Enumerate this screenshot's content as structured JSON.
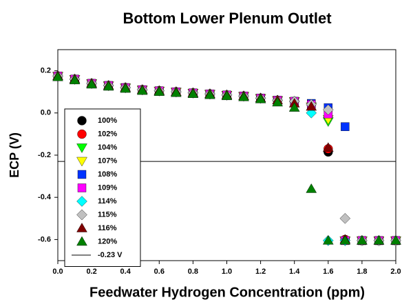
{
  "chart_data": {
    "type": "scatter",
    "title": "Bottom Lower Plenum Outlet",
    "x_label": "Feedwater Hydrogen Concentration (ppm)",
    "y_label": "ECP (V)",
    "x": [
      0,
      0.1,
      0.2,
      0.3,
      0.4,
      0.5,
      0.6,
      0.7,
      0.8,
      0.9,
      1.0,
      1.1,
      1.2,
      1.3,
      1.4,
      1.5,
      1.6,
      1.7,
      1.8,
      1.9,
      2.0
    ],
    "xlim": [
      0,
      2.0
    ],
    "xticks": [
      {
        "value": 0,
        "label": "0.0"
      },
      0.2,
      0.4,
      0.6,
      0.8,
      {
        "value": 1,
        "label": "1.0"
      },
      1.2,
      1.4,
      1.6,
      1.8,
      {
        "value": 2,
        "label": "2.0"
      }
    ],
    "ylim": [
      -0.7,
      0.3
    ],
    "yticks": [
      0.2,
      {
        "value": 0,
        "label": "0.0"
      },
      -0.2,
      -0.4,
      -0.6
    ],
    "legend": "lower-left",
    "series": [
      {
        "name": "100%",
        "color": "#000000",
        "marker": "circle",
        "values": [
          0.175,
          0.16,
          0.14,
          0.13,
          0.12,
          0.11,
          0.105,
          0.1,
          0.095,
          0.09,
          0.085,
          0.08,
          0.07,
          0.06,
          0.055,
          0.04,
          -0.185,
          -0.6,
          -0.605,
          -0.605,
          -0.605
        ]
      },
      {
        "name": "102%",
        "color": "#ff0000",
        "marker": "circle",
        "values": [
          0.175,
          0.16,
          0.14,
          0.13,
          0.12,
          0.11,
          0.105,
          0.1,
          0.095,
          0.09,
          0.085,
          0.08,
          0.07,
          0.06,
          0.055,
          0.04,
          -0.17,
          -0.6,
          -0.605,
          -0.605,
          -0.605
        ]
      },
      {
        "name": "104%",
        "color": "#00ff00",
        "marker": "triangle-down",
        "values": [
          0.175,
          0.16,
          0.14,
          0.13,
          0.12,
          0.11,
          0.105,
          0.1,
          0.095,
          0.09,
          0.085,
          0.08,
          0.07,
          0.06,
          0.055,
          0.03,
          -0.04,
          -0.605,
          -0.605,
          -0.605,
          -0.605
        ]
      },
      {
        "name": "107%",
        "color": "#ffff00",
        "marker": "triangle-down",
        "values": [
          0.175,
          0.16,
          0.14,
          0.13,
          0.12,
          0.11,
          0.105,
          0.1,
          0.095,
          0.09,
          0.085,
          0.08,
          0.07,
          0.06,
          0.055,
          0.03,
          -0.03,
          -0.605,
          -0.605,
          -0.605,
          -0.605
        ]
      },
      {
        "name": "108%",
        "color": "#0033ff",
        "marker": "square",
        "values": [
          0.175,
          0.16,
          0.14,
          0.13,
          0.12,
          0.11,
          0.105,
          0.1,
          0.095,
          0.09,
          0.085,
          0.08,
          0.07,
          0.06,
          0.055,
          0.045,
          0.025,
          -0.065,
          -0.605,
          -0.605,
          -0.605
        ]
      },
      {
        "name": "109%",
        "color": "#ff00ff",
        "marker": "square",
        "values": [
          0.175,
          0.16,
          0.14,
          0.13,
          0.12,
          0.11,
          0.105,
          0.1,
          0.095,
          0.09,
          0.085,
          0.08,
          0.07,
          0.06,
          0.055,
          0.04,
          -0.005,
          -0.605,
          -0.605,
          -0.605,
          -0.605
        ]
      },
      {
        "name": "114%",
        "color": "#00ffff",
        "marker": "diamond",
        "values": [
          0.175,
          0.16,
          0.14,
          0.13,
          0.12,
          0.11,
          0.105,
          0.1,
          0.095,
          0.09,
          0.085,
          0.08,
          0.07,
          0.06,
          0.055,
          0.0,
          -0.605,
          -0.605,
          -0.605,
          -0.605,
          -0.605
        ]
      },
      {
        "name": "115%",
        "color": "#c0c0c0",
        "marker": "diamond",
        "values": [
          0.175,
          0.16,
          0.14,
          0.13,
          0.12,
          0.11,
          0.105,
          0.1,
          0.095,
          0.09,
          0.085,
          0.08,
          0.07,
          0.06,
          0.055,
          0.04,
          0.015,
          -0.5,
          -0.605,
          -0.605,
          -0.605
        ]
      },
      {
        "name": "116%",
        "color": "#800000",
        "marker": "triangle-up",
        "values": [
          0.175,
          0.16,
          0.14,
          0.13,
          0.12,
          0.11,
          0.105,
          0.1,
          0.095,
          0.09,
          0.085,
          0.08,
          0.07,
          0.06,
          0.045,
          0.03,
          -0.165,
          -0.6,
          -0.605,
          -0.605,
          -0.605
        ]
      },
      {
        "name": "120%",
        "color": "#008000",
        "marker": "triangle-up",
        "values": [
          0.17,
          0.155,
          0.135,
          0.125,
          0.115,
          0.105,
          0.1,
          0.095,
          0.09,
          0.085,
          0.08,
          0.075,
          0.065,
          0.05,
          0.025,
          -0.36,
          -0.605,
          -0.605,
          -0.605,
          -0.605,
          -0.605
        ]
      }
    ],
    "reference_line": {
      "name": "-0.23 V",
      "value": -0.23,
      "color": "#000000"
    }
  }
}
